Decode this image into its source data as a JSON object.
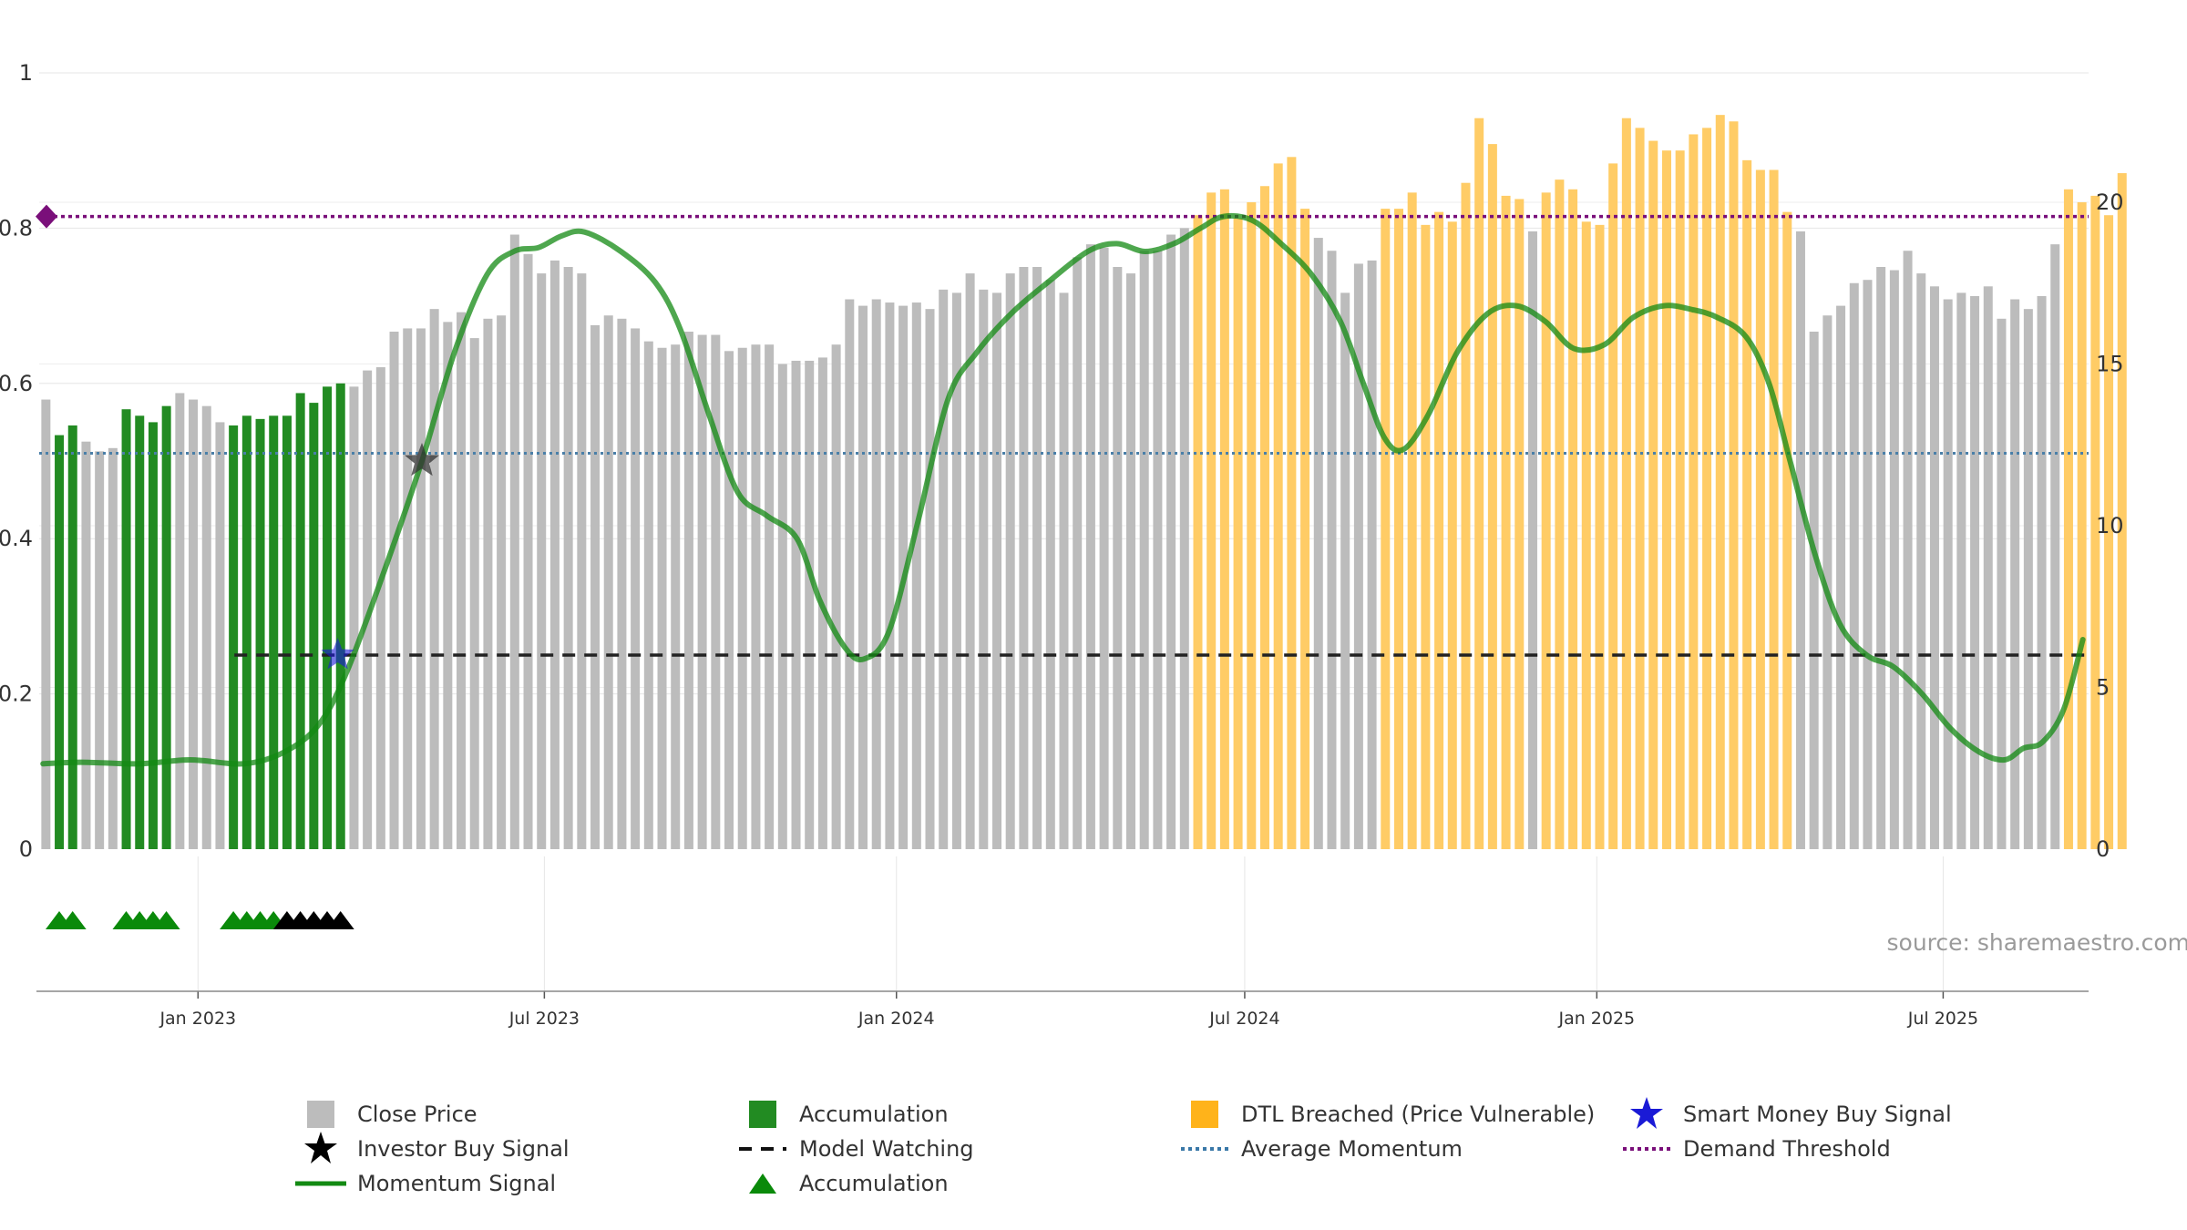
{
  "chart_data": {
    "type": "bar",
    "title": "",
    "xlabel": "",
    "ylabel_left": "",
    "ylabel_right": "",
    "left_axis": {
      "min": 0,
      "max": 1,
      "ticks": [
        "0",
        "0.2",
        "0.4",
        "0.6",
        "0.8",
        "1"
      ],
      "tick_values": [
        0,
        0.2,
        0.4,
        0.6,
        0.8,
        1
      ]
    },
    "right_axis": {
      "min": 0,
      "max": 24,
      "ticks": [
        "0",
        "5",
        "10",
        "15",
        "20"
      ],
      "tick_values": [
        0,
        5,
        10,
        15,
        20
      ]
    },
    "x_axis": {
      "start": "2022-10-10",
      "end": "2025-09-15",
      "ticks": [
        {
          "label": "Jan 2023",
          "date": "2023-01-01"
        },
        {
          "label": "Jul 2023",
          "date": "2023-07-01"
        },
        {
          "label": "Jan 2024",
          "date": "2024-01-01"
        },
        {
          "label": "Jul 2024",
          "date": "2024-07-01"
        },
        {
          "label": "Jan 2025",
          "date": "2025-01-01"
        },
        {
          "label": "Jul 2025",
          "date": "2025-07-01"
        }
      ]
    },
    "bar_series": {
      "name": "Close Price",
      "axis": "right",
      "start_date": "2022-10-10",
      "interval_days": 7,
      "values": [
        13.9,
        12.8,
        13.1,
        12.6,
        12.3,
        12.4,
        13.6,
        13.4,
        13.2,
        13.7,
        14.1,
        13.9,
        13.7,
        13.2,
        13.1,
        13.4,
        13.3,
        13.4,
        13.4,
        14.1,
        13.8,
        14.3,
        14.4,
        14.3,
        14.8,
        14.9,
        16.0,
        16.1,
        16.1,
        16.7,
        16.3,
        16.6,
        15.8,
        16.4,
        16.5,
        19.0,
        18.4,
        17.8,
        18.2,
        18.0,
        17.8,
        16.2,
        16.5,
        16.4,
        16.1,
        15.7,
        15.5,
        15.6,
        16.0,
        15.9,
        15.9,
        15.4,
        15.5,
        15.6,
        15.6,
        15.0,
        15.1,
        15.1,
        15.2,
        15.6,
        17.0,
        16.8,
        17.0,
        16.9,
        16.8,
        16.9,
        16.7,
        17.3,
        17.2,
        17.8,
        17.3,
        17.2,
        17.8,
        18.0,
        18.0,
        17.6,
        17.2,
        18.3,
        18.7,
        18.6,
        18.0,
        17.8,
        18.5,
        18.5,
        19.0,
        19.2,
        19.6,
        20.3,
        20.4,
        19.5,
        20.0,
        20.5,
        21.2,
        21.4,
        19.8,
        18.9,
        18.5,
        17.2,
        18.1,
        18.2,
        19.8,
        19.8,
        20.3,
        19.3,
        19.7,
        19.4,
        20.6,
        22.6,
        21.8,
        20.2,
        20.1,
        19.1,
        20.3,
        20.7,
        20.4,
        19.4,
        19.3,
        21.2,
        22.6,
        22.3,
        21.9,
        21.6,
        21.6,
        22.1,
        22.3,
        22.7,
        22.5,
        21.3,
        21.0,
        21.0,
        19.7,
        19.1,
        16.0,
        16.5,
        16.8,
        17.5,
        17.6,
        18.0,
        17.9,
        18.5,
        17.8,
        17.4,
        17.0,
        17.2,
        17.1,
        17.4,
        16.4,
        17.0,
        16.7,
        17.1,
        18.7,
        20.4,
        20.0,
        20.2,
        19.6,
        20.9
      ],
      "highlight_ranges": [
        {
          "legend": "accumulation",
          "from": 1,
          "to": 2
        },
        {
          "legend": "accumulation",
          "from": 6,
          "to": 9
        },
        {
          "legend": "accumulation",
          "from": 14,
          "to": 22
        },
        {
          "legend": "dtl",
          "from": 86,
          "to": 94
        },
        {
          "legend": "dtl",
          "from": 100,
          "to": 110
        },
        {
          "legend": "dtl",
          "from": 112,
          "to": 130
        },
        {
          "legend": "dtl",
          "from": 151,
          "to": 155
        }
      ]
    },
    "momentum_signal": {
      "name": "Momentum Signal",
      "axis": "left",
      "points": [
        [
          "2022-10-12",
          0.11
        ],
        [
          "2022-11-01",
          0.112
        ],
        [
          "2022-12-01",
          0.11
        ],
        [
          "2022-12-28",
          0.115
        ],
        [
          "2023-01-25",
          0.11
        ],
        [
          "2023-02-15",
          0.125
        ],
        [
          "2023-03-05",
          0.16
        ],
        [
          "2023-03-20",
          0.23
        ],
        [
          "2023-04-10",
          0.37
        ],
        [
          "2023-04-28",
          0.5
        ],
        [
          "2023-05-15",
          0.64
        ],
        [
          "2023-06-01",
          0.74
        ],
        [
          "2023-06-15",
          0.77
        ],
        [
          "2023-06-28",
          0.775
        ],
        [
          "2023-07-10",
          0.79
        ],
        [
          "2023-07-22",
          0.795
        ],
        [
          "2023-08-10",
          0.77
        ],
        [
          "2023-08-28",
          0.73
        ],
        [
          "2023-09-10",
          0.67
        ],
        [
          "2023-09-25",
          0.56
        ],
        [
          "2023-10-10",
          0.46
        ],
        [
          "2023-10-25",
          0.43
        ],
        [
          "2023-11-10",
          0.4
        ],
        [
          "2023-11-22",
          0.32
        ],
        [
          "2023-12-05",
          0.26
        ],
        [
          "2023-12-15",
          0.245
        ],
        [
          "2023-12-28",
          0.28
        ],
        [
          "2024-01-12",
          0.42
        ],
        [
          "2024-01-28",
          0.58
        ],
        [
          "2024-02-12",
          0.64
        ],
        [
          "2024-03-01",
          0.69
        ],
        [
          "2024-03-20",
          0.73
        ],
        [
          "2024-04-10",
          0.77
        ],
        [
          "2024-04-25",
          0.78
        ],
        [
          "2024-05-10",
          0.77
        ],
        [
          "2024-05-25",
          0.78
        ],
        [
          "2024-06-08",
          0.8
        ],
        [
          "2024-06-20",
          0.815
        ],
        [
          "2024-07-05",
          0.81
        ],
        [
          "2024-07-20",
          0.78
        ],
        [
          "2024-08-05",
          0.74
        ],
        [
          "2024-08-20",
          0.68
        ],
        [
          "2024-09-01",
          0.6
        ],
        [
          "2024-09-12",
          0.53
        ],
        [
          "2024-09-22",
          0.515
        ],
        [
          "2024-10-05",
          0.56
        ],
        [
          "2024-10-20",
          0.64
        ],
        [
          "2024-11-05",
          0.69
        ],
        [
          "2024-11-20",
          0.7
        ],
        [
          "2024-12-05",
          0.68
        ],
        [
          "2024-12-20",
          0.645
        ],
        [
          "2025-01-05",
          0.65
        ],
        [
          "2025-01-20",
          0.685
        ],
        [
          "2025-02-05",
          0.7
        ],
        [
          "2025-02-20",
          0.695
        ],
        [
          "2025-03-05",
          0.685
        ],
        [
          "2025-03-20",
          0.66
        ],
        [
          "2025-04-01",
          0.6
        ],
        [
          "2025-04-12",
          0.5
        ],
        [
          "2025-04-25",
          0.38
        ],
        [
          "2025-05-08",
          0.29
        ],
        [
          "2025-05-22",
          0.25
        ],
        [
          "2025-06-05",
          0.235
        ],
        [
          "2025-06-20",
          0.2
        ],
        [
          "2025-07-05",
          0.155
        ],
        [
          "2025-07-20",
          0.125
        ],
        [
          "2025-08-02",
          0.115
        ],
        [
          "2025-08-12",
          0.13
        ],
        [
          "2025-08-22",
          0.138
        ],
        [
          "2025-09-02",
          0.18
        ],
        [
          "2025-09-12",
          0.27
        ]
      ]
    },
    "average_momentum": {
      "name": "Average Momentum",
      "axis": "left",
      "value": 0.51
    },
    "demand_threshold": {
      "name": "Demand Threshold",
      "axis": "left",
      "value": 0.815
    },
    "model_watching": {
      "name": "Model Watching",
      "axis": "left",
      "value": 0.25,
      "from": "2023-01-20",
      "to": "2025-09-15"
    },
    "investor_buy_signal": {
      "name": "Investor Buy Signal",
      "date": "2023-04-28",
      "value": 0.5
    },
    "smart_money_buy_signal": {
      "name": "Smart Money Buy Signal",
      "date": "2023-03-15",
      "value": 0.25
    },
    "accumulation_markers": {
      "name": "Accumulation",
      "green_indexes": [
        1,
        2,
        6,
        7,
        8,
        9,
        14,
        15,
        16,
        17
      ],
      "black_indexes": [
        18,
        19,
        20,
        21,
        22
      ]
    },
    "source": "source: sharemaestro.com",
    "colors": {
      "close_price": "#bcbcbc",
      "accumulation": "#228b22",
      "dtl_breached": "#ffcc66",
      "momentum": "#138a13",
      "average_momentum": "#4a7fa8",
      "demand_threshold": "#7a0f7a",
      "model_watching": "#222222",
      "smart_money": "#1a1ad6",
      "investor_star": "#333333",
      "marker_green": "#0a8a0a",
      "marker_black": "#000000"
    },
    "legend": {
      "close_price": "Close Price",
      "accumulation": "Accumulation",
      "dtl": "DTL Breached (Price Vulnerable)",
      "smart_money": "Smart Money Buy Signal",
      "investor": "Investor Buy Signal",
      "model_watching": "Model Watching",
      "average_momentum": "Average Momentum",
      "demand_threshold": "Demand Threshold",
      "momentum": "Momentum Signal",
      "accumulation_marker": "Accumulation"
    }
  }
}
